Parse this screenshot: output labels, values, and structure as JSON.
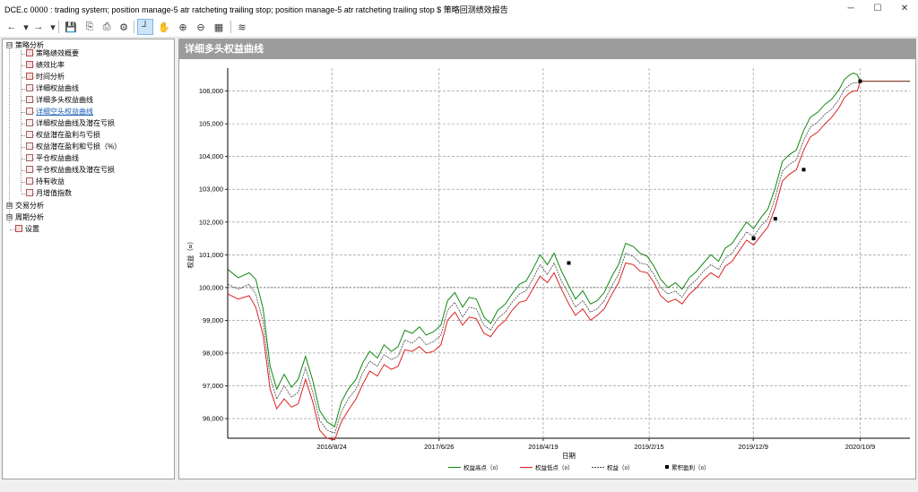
{
  "window": {
    "title": "DCE.c 0000 : trading system; position manage-5 atr ratcheting trailing stop; position manage-5 atr ratcheting trailing stop $ 策略回测绩效报告",
    "minimize": "─",
    "maximize": "☐",
    "close": "✕"
  },
  "toolbar": {
    "back": "←",
    "forward": "→",
    "dropdown": "▾",
    "save": "💾",
    "copy": "⎘",
    "print": "⎙",
    "settings": "⚙",
    "crosshair": "┘",
    "pan": "✋",
    "zoom_in": "⊕",
    "zoom_out": "⊖",
    "data_table": "▦",
    "chart_style": "≋"
  },
  "tree": {
    "groups": [
      {
        "label": "策略分析",
        "expander": "⊟"
      },
      {
        "label": "交易分析",
        "expander": "⊞"
      },
      {
        "label": "周期分析",
        "expander": "⊞"
      },
      {
        "label": "设置",
        "expander": ""
      }
    ],
    "items": [
      {
        "label": "策略绩效概要"
      },
      {
        "label": "绩效比率"
      },
      {
        "label": "时间分析"
      },
      {
        "label": "详细权益曲线"
      },
      {
        "label": "详细多头权益曲线"
      },
      {
        "label": "详细空头权益曲线"
      },
      {
        "label": "详细权益曲线及潜在亏损"
      },
      {
        "label": "权益潜在盈利与亏损"
      },
      {
        "label": "权益潜在盈利和亏损（%）"
      },
      {
        "label": "平仓权益曲线"
      },
      {
        "label": "平仓权益曲线及潜在亏损"
      },
      {
        "label": "持有收益"
      },
      {
        "label": "月增值指数"
      }
    ],
    "selected_index": 5
  },
  "panel": {
    "title": "详细多头权益曲线"
  },
  "chart_data": {
    "type": "line",
    "title": "详细多头权益曲线",
    "xlabel": "日期",
    "ylabel": "权益（¤）",
    "ylim": [
      95400,
      106700
    ],
    "x_ticks": [
      "2016/8/24",
      "2017/6/26",
      "2018/4/19",
      "2019/2/15",
      "2019/12/9",
      "2020/10/9"
    ],
    "y_ticks": [
      "96,000",
      "97,000",
      "98,000",
      "99,000",
      "100,000",
      "101,000",
      "102,000",
      "103,000",
      "104,000",
      "105,000",
      "106,000"
    ],
    "y_tick_values": [
      96000,
      97000,
      98000,
      99000,
      100000,
      101000,
      102000,
      103000,
      104000,
      105000,
      106000
    ],
    "baseline": 100000,
    "x": [
      "2015/11/02",
      "2015/12/01",
      "2016/01/01",
      "2016/01/20",
      "2016/02/10",
      "2016/03/01",
      "2016/03/20",
      "2016/04/10",
      "2016/05/01",
      "2016/05/20",
      "2016/06/10",
      "2016/07/01",
      "2016/07/20",
      "2016/08/10",
      "2016/09/01",
      "2016/09/20",
      "2016/10/10",
      "2016/11/01",
      "2016/11/20",
      "2016/12/10",
      "2017/01/01",
      "2017/01/20",
      "2017/02/10",
      "2017/03/01",
      "2017/03/20",
      "2017/04/10",
      "2017/05/01",
      "2017/05/20",
      "2017/06/10",
      "2017/07/01",
      "2017/07/20",
      "2017/08/10",
      "2017/09/01",
      "2017/09/20",
      "2017/10/10",
      "2017/11/01",
      "2017/11/20",
      "2017/12/10",
      "2018/01/01",
      "2018/01/20",
      "2018/02/10",
      "2018/03/01",
      "2018/03/20",
      "2018/04/10",
      "2018/05/01",
      "2018/05/20",
      "2018/06/10",
      "2018/07/01",
      "2018/07/20",
      "2018/08/10",
      "2018/09/01",
      "2018/09/20",
      "2018/10/10",
      "2018/11/01",
      "2018/11/20",
      "2018/12/10",
      "2019/01/01",
      "2019/01/20",
      "2019/02/10",
      "2019/03/01",
      "2019/03/20",
      "2019/04/10",
      "2019/05/01",
      "2019/05/20",
      "2019/06/10",
      "2019/07/01",
      "2019/07/20",
      "2019/08/10",
      "2019/09/01",
      "2019/09/20",
      "2019/10/10",
      "2019/11/01",
      "2019/11/20",
      "2019/12/10",
      "2020/01/01",
      "2020/01/20",
      "2020/02/10",
      "2020/03/01",
      "2020/03/20",
      "2020/04/10",
      "2020/05/01",
      "2020/05/20",
      "2020/06/10",
      "2020/07/01",
      "2020/07/20",
      "2020/08/10",
      "2020/08/25",
      "2020/09/10",
      "2020/09/20",
      "2020/10/01",
      "2020/10/09",
      "2021/02/28"
    ],
    "series": [
      {
        "name": "权益高点（¤）",
        "color": "#118811",
        "values": [
          100550,
          100300,
          100450,
          100250,
          99350,
          97600,
          96900,
          97350,
          96950,
          97200,
          97900,
          97150,
          96250,
          95900,
          95750,
          96500,
          96900,
          97200,
          97700,
          98050,
          97850,
          98250,
          98050,
          98200,
          98700,
          98600,
          98800,
          98550,
          98650,
          98850,
          99600,
          99850,
          99400,
          99700,
          99650,
          99100,
          98900,
          99300,
          99500,
          99800,
          100100,
          100200,
          100550,
          101000,
          100700,
          101050,
          100500,
          100050,
          99650,
          99900,
          99500,
          99600,
          99850,
          100350,
          100700,
          101350,
          101250,
          101050,
          100950,
          100650,
          100250,
          100000,
          100150,
          99950,
          100300,
          100500,
          100750,
          101000,
          100800,
          101200,
          101350,
          101700,
          102000,
          101800,
          102150,
          102400,
          103050,
          103850,
          104050,
          104200,
          104800,
          105200,
          105350,
          105600,
          105750,
          106050,
          106350,
          106500,
          106550,
          106500,
          106300,
          106300
        ]
      },
      {
        "name": "权益低点（¤）",
        "color": "#dd2222",
        "values": [
          99800,
          99650,
          99750,
          99400,
          98550,
          96900,
          96300,
          96600,
          96350,
          96450,
          97200,
          96500,
          95650,
          95400,
          95350,
          95900,
          96250,
          96600,
          97050,
          97450,
          97300,
          97650,
          97500,
          97600,
          98100,
          98050,
          98200,
          98000,
          98050,
          98250,
          99000,
          99250,
          98850,
          99100,
          99050,
          98600,
          98500,
          98800,
          99000,
          99300,
          99550,
          99600,
          99950,
          100350,
          100150,
          100450,
          99950,
          99500,
          99150,
          99350,
          99000,
          99150,
          99350,
          99800,
          100150,
          100750,
          100700,
          100500,
          100450,
          100150,
          99750,
          99550,
          99650,
          99500,
          99800,
          100000,
          100250,
          100450,
          100300,
          100650,
          100800,
          101150,
          101450,
          101300,
          101600,
          101850,
          102450,
          103250,
          103450,
          103600,
          104200,
          104600,
          104750,
          105000,
          105200,
          105500,
          105800,
          105950,
          106000,
          106000,
          106300,
          106300
        ]
      },
      {
        "name": "权益（¤）",
        "color": "#444444",
        "values": [
          100100,
          99950,
          100100,
          99800,
          98950,
          97250,
          96600,
          97000,
          96650,
          96800,
          97550,
          96800,
          95950,
          95650,
          95550,
          96200,
          96600,
          96900,
          97400,
          97750,
          97600,
          97950,
          97800,
          97900,
          98400,
          98300,
          98500,
          98250,
          98350,
          98550,
          99300,
          99550,
          99100,
          99400,
          99350,
          98850,
          98700,
          99050,
          99250,
          99550,
          99800,
          99900,
          100250,
          100700,
          100400,
          100750,
          100200,
          99800,
          99400,
          99600,
          99250,
          99350,
          99600,
          100050,
          100400,
          101050,
          100950,
          100750,
          100700,
          100400,
          100000,
          99800,
          99900,
          99700,
          100050,
          100250,
          100500,
          100700,
          100550,
          100900,
          101050,
          101400,
          101700,
          101550,
          101900,
          102100,
          102750,
          103550,
          103750,
          103900,
          104500,
          104900,
          105050,
          105300,
          105450,
          105750,
          106050,
          106200,
          106250,
          106250,
          106300,
          106300
        ]
      }
    ],
    "cumulative_profit": {
      "name": "累积盈利（¤）",
      "x": [
        "2018/07/01",
        "2019/12/10",
        "2020/02/10",
        "2020/05/01",
        "2020/10/09"
      ],
      "values": [
        100750,
        101500,
        102100,
        103600,
        106300
      ]
    },
    "grid": true,
    "legend_position": "bottom-right"
  }
}
